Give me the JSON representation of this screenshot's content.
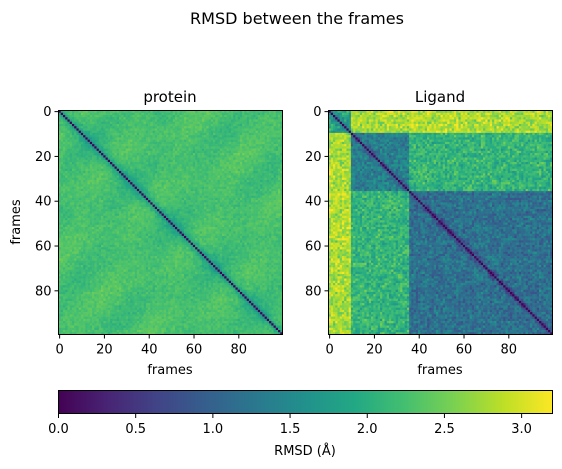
{
  "figure": {
    "suptitle": "RMSD between the frames",
    "colorbar_label": "RMSD (Å)"
  },
  "chart_data": {
    "type": "heatmap",
    "n_frames": 100,
    "colormap": "viridis",
    "vmin": 0.0,
    "vmax": 3.2,
    "colorbar_ticks": [
      "0.0",
      "0.5",
      "1.0",
      "1.5",
      "2.0",
      "2.5",
      "3.0"
    ],
    "colorbar_tick_values": [
      0.0,
      0.5,
      1.0,
      1.5,
      2.0,
      2.5,
      3.0
    ],
    "panels": [
      {
        "title": "protein",
        "xlabel": "frames",
        "ylabel": "frames",
        "xticks": [
          "0",
          "20",
          "40",
          "60",
          "80"
        ],
        "yticks": [
          "0",
          "20",
          "40",
          "60",
          "80"
        ],
        "tick_values": [
          0,
          20,
          40,
          60,
          80
        ],
        "typical_offdiagonal_rmsd": 2.0,
        "diagonal_rmsd": 0.0
      },
      {
        "title": "Ligand",
        "xlabel": "frames",
        "ylabel": "",
        "xticks": [
          "0",
          "20",
          "40",
          "60",
          "80"
        ],
        "yticks": [
          "0",
          "20",
          "40",
          "60",
          "80"
        ],
        "tick_values": [
          0,
          20,
          40,
          60,
          80
        ],
        "diagonal_rmsd": 0.0,
        "blocks": [
          {
            "frames": [
              0,
              9
            ],
            "rmsd_vs_rest": 2.8
          },
          {
            "frames": [
              10,
              35
            ],
            "rmsd_within": 1.4
          },
          {
            "frames": [
              36,
              99
            ],
            "rmsd_within": 1.2
          }
        ]
      }
    ]
  }
}
